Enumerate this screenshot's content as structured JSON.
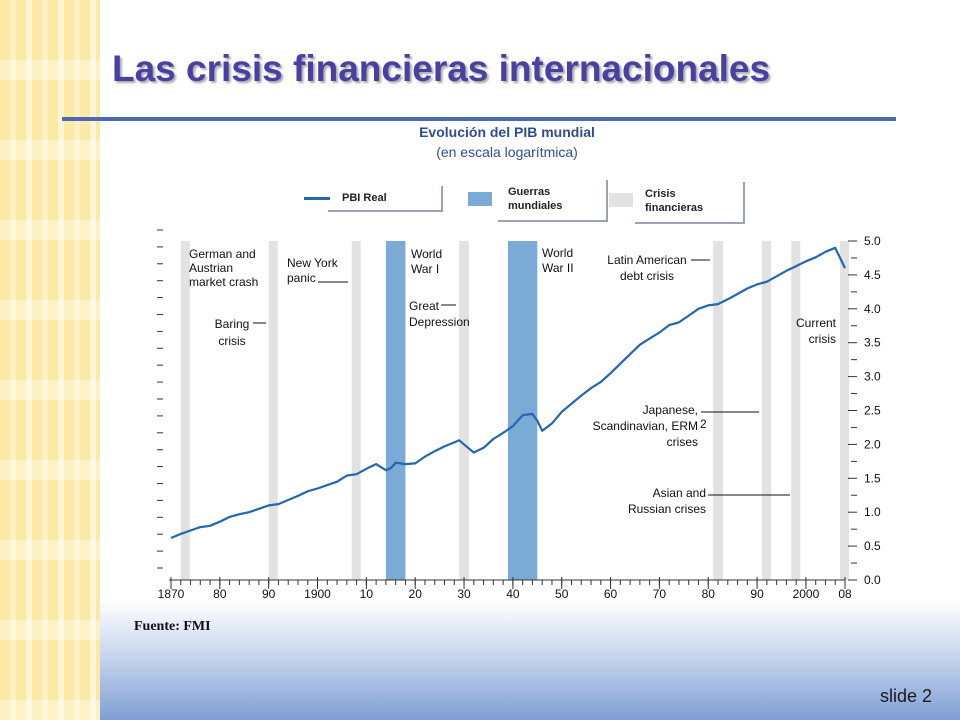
{
  "slide": {
    "title": "Las crisis financieras internacionales",
    "subtitle": "Evolución del PIB mundial",
    "subtitle2": "(en escala logarítmica)",
    "source": "Fuente: FMI",
    "slide_number": "slide 2"
  },
  "legend": {
    "real": "PBI Real",
    "wars_line1": "Guerras",
    "wars_line2": "mundiales",
    "crises_line1": "Crisis",
    "crises_line2": "financieras"
  },
  "colors": {
    "title": "#4a3fa3",
    "line": "#2466b2",
    "war_band": "#7aaad6",
    "crisis_band": "#e2e2e2"
  },
  "annotations": [
    [
      "German and",
      "Austrian",
      "market crash"
    ],
    [
      "Baring",
      "crisis"
    ],
    [
      "New York",
      "panic"
    ],
    [
      "World",
      "War I"
    ],
    [
      "Great",
      "Depression"
    ],
    [
      "World",
      "War II"
    ],
    [
      "Latin American",
      "debt crisis"
    ],
    [
      "Japanese,",
      "Scandinavian, ERM",
      "crises"
    ],
    [
      "Asian and",
      "Russian crises"
    ],
    [
      "Current",
      "crisis"
    ]
  ],
  "annotation_superscript": "2",
  "chart_data": {
    "type": "line",
    "title": "Evolución del PIB mundial",
    "x_tick_labels": [
      "1870",
      "80",
      "90",
      "1900",
      "10",
      "20",
      "30",
      "40",
      "50",
      "60",
      "70",
      "80",
      "90",
      "2000",
      "08"
    ],
    "y_tick_labels": [
      "0.0",
      "0.5",
      "1.0",
      "1.5",
      "2.0",
      "2.5",
      "3.0",
      "3.5",
      "4.0",
      "4.5",
      "5.0"
    ],
    "xlim": [
      1870,
      2008
    ],
    "ylim": [
      0,
      5.0
    ],
    "series": [
      {
        "name": "PBI Real",
        "x": [
          1870,
          1872,
          1874,
          1876,
          1878,
          1880,
          1882,
          1884,
          1886,
          1888,
          1890,
          1892,
          1894,
          1896,
          1898,
          1900,
          1902,
          1904,
          1906,
          1908,
          1910,
          1912,
          1914,
          1915,
          1916,
          1918,
          1920,
          1922,
          1924,
          1926,
          1928,
          1929,
          1930,
          1932,
          1934,
          1936,
          1938,
          1940,
          1942,
          1944,
          1945,
          1946,
          1948,
          1950,
          1952,
          1954,
          1956,
          1958,
          1960,
          1962,
          1964,
          1966,
          1968,
          1970,
          1972,
          1974,
          1976,
          1978,
          1980,
          1982,
          1984,
          1986,
          1988,
          1990,
          1992,
          1994,
          1996,
          1998,
          2000,
          2002,
          2004,
          2006,
          2008
        ],
        "y": [
          0.62,
          0.68,
          0.73,
          0.78,
          0.8,
          0.86,
          0.93,
          0.97,
          1.0,
          1.05,
          1.1,
          1.12,
          1.18,
          1.24,
          1.31,
          1.35,
          1.4,
          1.45,
          1.54,
          1.56,
          1.64,
          1.71,
          1.62,
          1.65,
          1.73,
          1.71,
          1.72,
          1.82,
          1.9,
          1.97,
          2.03,
          2.06,
          2.0,
          1.88,
          1.95,
          2.08,
          2.17,
          2.27,
          2.43,
          2.45,
          2.35,
          2.2,
          2.31,
          2.48,
          2.6,
          2.72,
          2.83,
          2.92,
          3.05,
          3.19,
          3.33,
          3.47,
          3.56,
          3.65,
          3.76,
          3.8,
          3.9,
          4.0,
          4.05,
          4.07,
          4.14,
          4.22,
          4.3,
          4.36,
          4.4,
          4.48,
          4.56,
          4.63,
          4.7,
          4.76,
          4.84,
          4.9,
          4.6
        ]
      }
    ],
    "war_bands": [
      [
        1914,
        1918
      ],
      [
        1939,
        1945
      ]
    ],
    "crisis_bands": [
      [
        1872,
        1873
      ],
      [
        1890,
        1891
      ],
      [
        1907,
        1908
      ],
      [
        1929,
        1931
      ],
      [
        1981,
        1983
      ],
      [
        1991,
        1992
      ],
      [
        1997,
        1998
      ],
      [
        2007,
        2008
      ]
    ],
    "grid": false,
    "legend_position": "top-center"
  }
}
